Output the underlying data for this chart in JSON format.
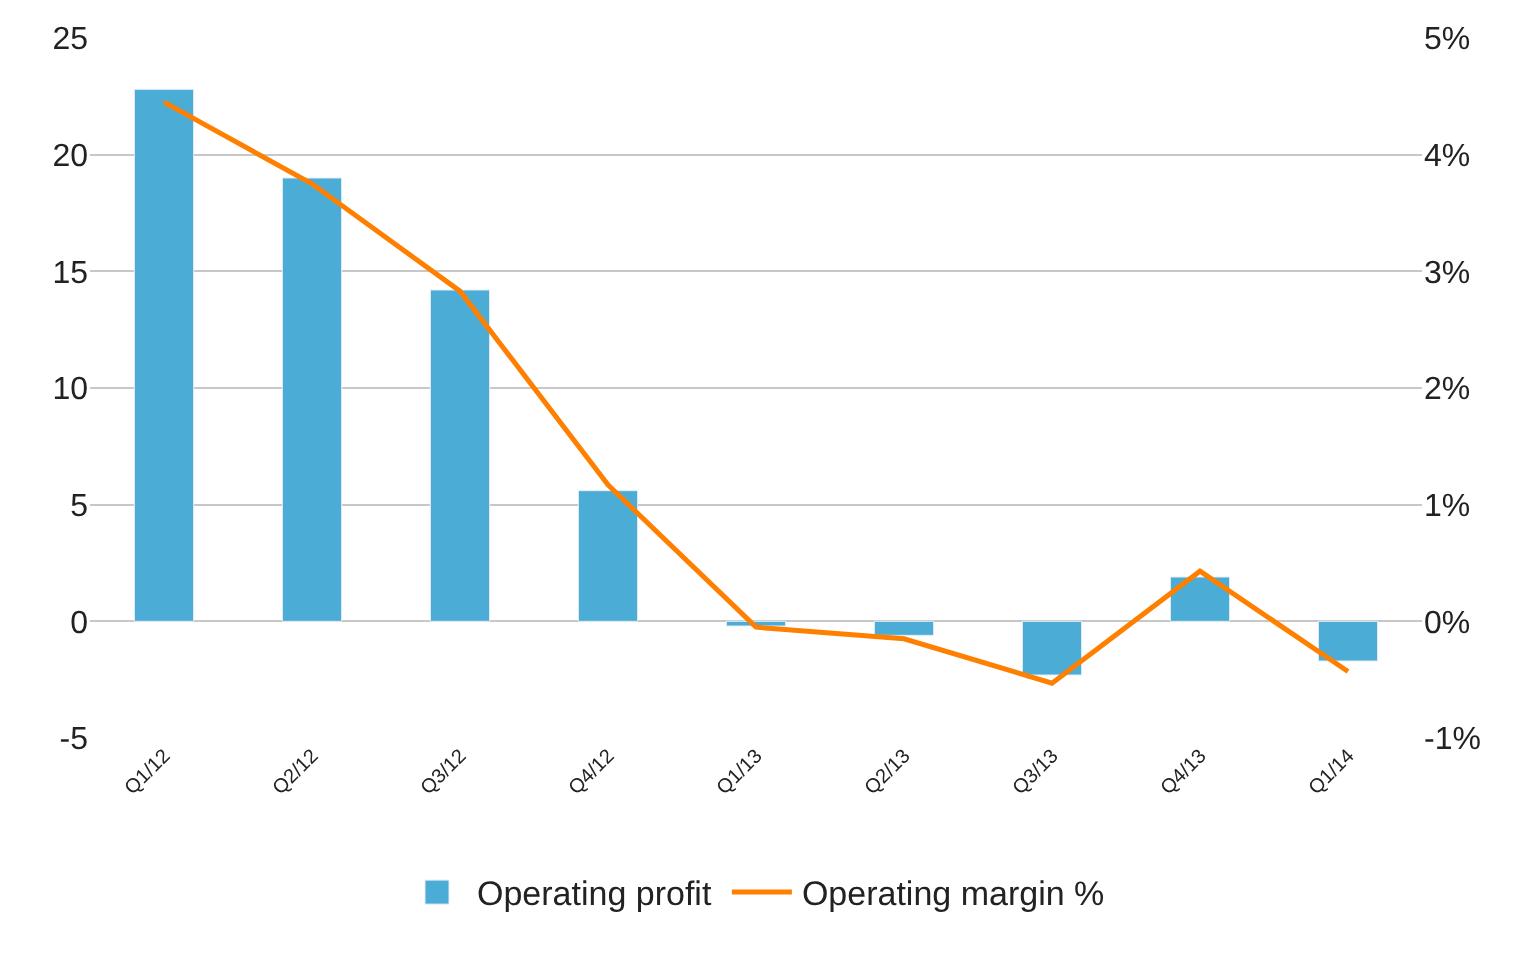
{
  "chart_data": {
    "type": "bar",
    "categories": [
      "Q1/12",
      "Q2/12",
      "Q3/12",
      "Q4/12",
      "Q1/13",
      "Q2/13",
      "Q3/13",
      "Q4/13",
      "Q1/14"
    ],
    "series": [
      {
        "name": "Operating profit",
        "color": "#4bacd6",
        "values": [
          22.8,
          19.0,
          14.2,
          5.6,
          -0.2,
          -0.6,
          -2.3,
          1.9,
          -1.7
        ]
      },
      {
        "name": "Operating margin %",
        "type": "line",
        "axis": "y2",
        "color": "#ff8000",
        "values": [
          4.45,
          3.75,
          2.83,
          1.17,
          -0.05,
          -0.15,
          -0.53,
          0.43,
          -0.43
        ]
      }
    ],
    "ylim": [
      -5,
      25
    ],
    "yticks": [
      -5,
      0,
      5,
      10,
      15,
      20,
      25
    ],
    "y2lim": [
      -1,
      5
    ],
    "y2ticks": [
      {
        "value": -1,
        "label": "-1%"
      },
      {
        "value": 0,
        "label": "0%"
      },
      {
        "value": 1,
        "label": "1%"
      },
      {
        "value": 2,
        "label": "2%"
      },
      {
        "value": 3,
        "label": "3%"
      },
      {
        "value": 4,
        "label": "4%"
      },
      {
        "value": 5,
        "label": "5%"
      }
    ],
    "grid": "y",
    "legend": "bottom",
    "marker": "none",
    "line_style": "solid"
  }
}
